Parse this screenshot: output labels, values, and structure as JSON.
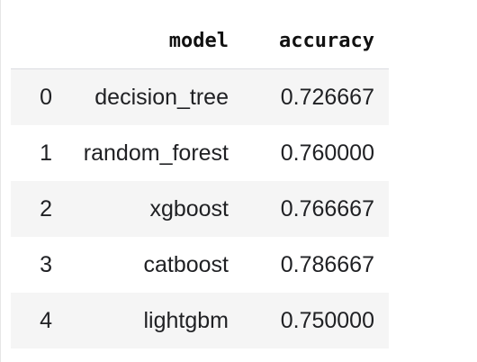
{
  "table": {
    "columns": [
      "model",
      "accuracy"
    ],
    "rows": [
      {
        "index": "0",
        "model": "decision_tree",
        "accuracy": "0.726667"
      },
      {
        "index": "1",
        "model": "random_forest",
        "accuracy": "0.760000"
      },
      {
        "index": "2",
        "model": "xgboost",
        "accuracy": "0.766667"
      },
      {
        "index": "3",
        "model": "catboost",
        "accuracy": "0.786667"
      },
      {
        "index": "4",
        "model": "lightgbm",
        "accuracy": "0.750000"
      }
    ]
  }
}
